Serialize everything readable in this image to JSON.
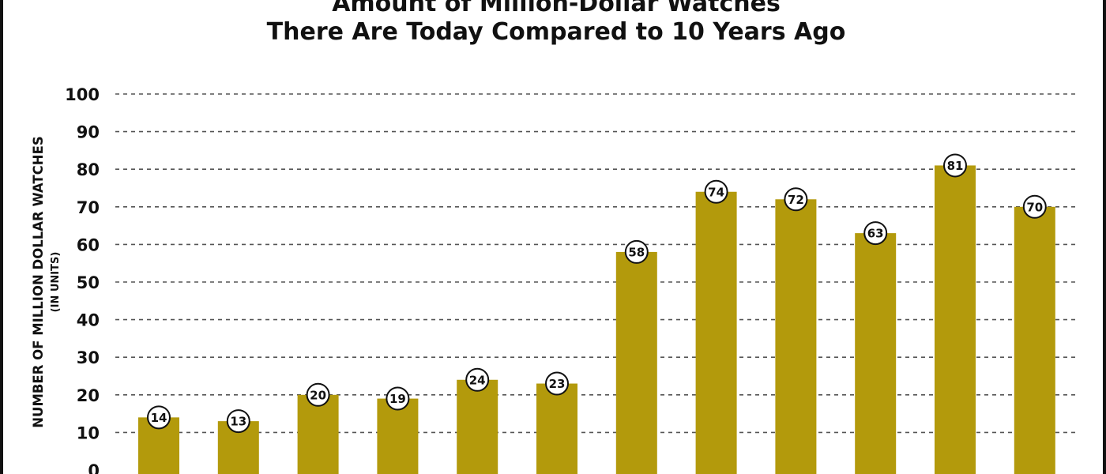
{
  "chart_data": {
    "type": "bar",
    "title_lines": [
      "Amount of Million-Dollar Watches",
      "There Are Today Compared to 10 Years Ago"
    ],
    "ylabel": "NUMBER OF MILLION DOLLAR WATCHES",
    "ylabel_sub": "(IN UNITS)",
    "xlabel": "",
    "yticks": [
      "0",
      "10",
      "20",
      "30",
      "40",
      "50",
      "60",
      "70",
      "80",
      "90",
      "100"
    ],
    "ylim": [
      0,
      100
    ],
    "grid": true,
    "values": [
      14,
      13,
      20,
      19,
      24,
      23,
      58,
      74,
      72,
      63,
      81,
      70
    ],
    "bar_color": "#b39a0c",
    "grid_color": "#555555",
    "text_color": "#111111",
    "label_bg": "#ffffff"
  }
}
